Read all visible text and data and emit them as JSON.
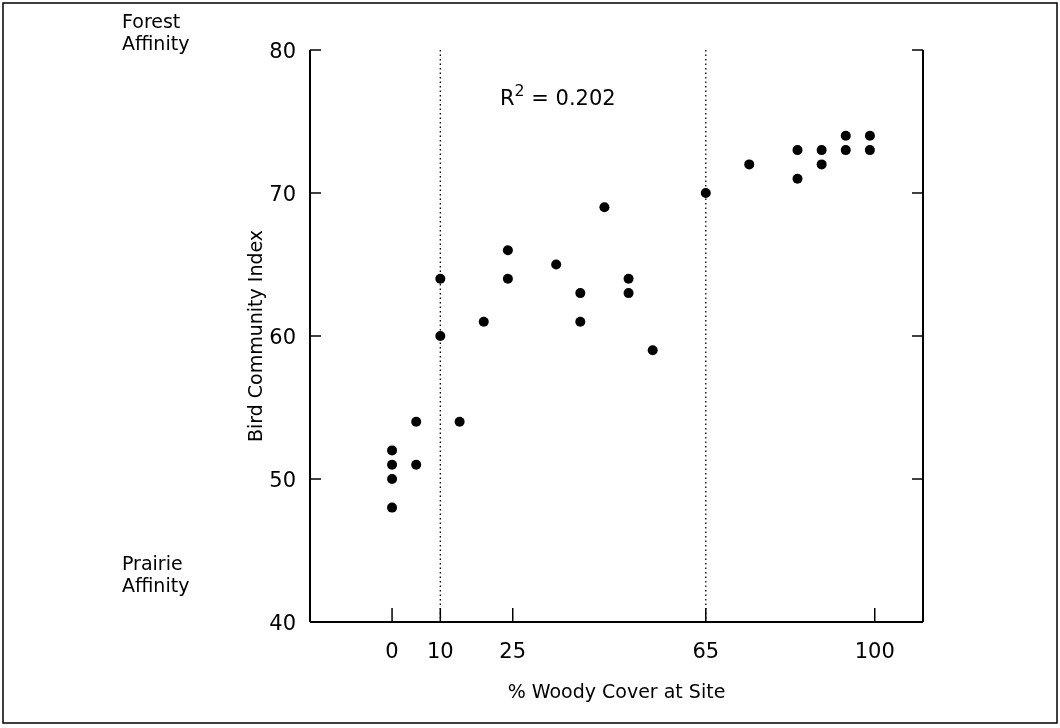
{
  "chart_data": {
    "type": "scatter",
    "xlabel": "% Woody Cover at Site",
    "ylabel": "Bird Community Index",
    "annotations": [
      "Forest Affinity",
      "Prairie Affinity",
      "R$^{2}$ = 0.202"
    ],
    "series": [
      {
        "color": "#000000",
        "x": [
          0,
          0,
          0,
          0,
          5,
          5,
          10,
          10,
          14,
          19,
          24,
          24,
          34,
          39,
          39,
          44,
          49,
          49,
          54,
          65,
          74,
          84,
          84,
          89,
          89,
          94,
          94,
          99,
          99
        ],
        "values": [
          52,
          51,
          50,
          48,
          54,
          51,
          64,
          60,
          54,
          61,
          66,
          64,
          65,
          63,
          61,
          69,
          64,
          63,
          59,
          70,
          72,
          73,
          71,
          73,
          72,
          74,
          73,
          74,
          73
        ]
      }
    ],
    "xlim": [
      -17,
      110
    ],
    "xticks": [
      0,
      10,
      25,
      65,
      100
    ],
    "ylim": [
      40,
      80
    ],
    "yticks": [
      40,
      50,
      60,
      70,
      80
    ],
    "ref_lines": [
      {
        "axis": "x",
        "value": 10,
        "color": "#000000",
        "line_style": "dotted"
      },
      {
        "axis": "x",
        "value": 65,
        "color": "#000000",
        "line_style": "dotted"
      }
    ],
    "grid": false,
    "marker": "circle"
  }
}
